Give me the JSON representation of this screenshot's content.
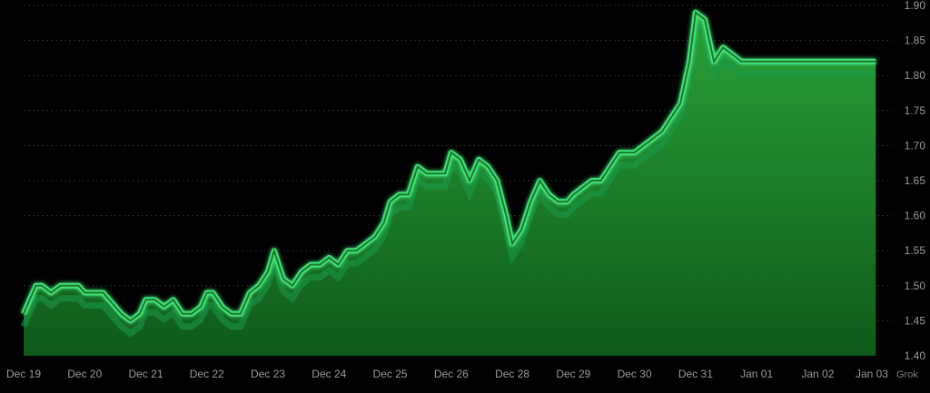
{
  "watermark": "Grok",
  "chart_data": {
    "type": "area",
    "title": "",
    "xlabel": "",
    "ylabel": "",
    "ylim": [
      1.4,
      1.9
    ],
    "yticks": [
      "1.40",
      "1.45",
      "1.50",
      "1.55",
      "1.60",
      "1.65",
      "1.70",
      "1.75",
      "1.80",
      "1.85",
      "1.90"
    ],
    "xtick_labels": [
      "Dec 19",
      "Dec 20",
      "Dec 21",
      "Dec 22",
      "Dec 23",
      "Dec 24",
      "Dec 25",
      "Dec 26",
      "Dec 28",
      "Dec 29",
      "Dec 30",
      "Dec 31",
      "Jan 01",
      "Jan 02",
      "Jan 03"
    ],
    "grid": true,
    "line_color": "#3fe07a",
    "fill_color": "#1f8a2e",
    "series": [
      {
        "x": [
          0,
          0.1,
          0.2,
          0.3,
          0.45,
          0.6,
          0.75,
          0.9,
          1.0,
          1.1,
          1.3,
          1.5,
          1.6,
          1.75,
          1.9,
          2.0,
          2.15,
          2.3,
          2.45,
          2.6,
          2.75,
          2.9,
          3.0,
          3.1,
          3.25,
          3.4,
          3.55,
          3.7,
          3.85,
          4.0,
          4.1,
          4.25,
          4.4,
          4.55,
          4.7,
          4.85,
          5.0,
          5.15,
          5.3,
          5.45,
          5.6,
          5.75,
          5.9,
          6.0,
          6.15,
          6.3,
          6.45,
          6.6,
          6.75,
          6.9,
          7.0,
          7.15,
          7.3,
          7.45,
          7.6,
          7.75,
          7.9,
          8.0,
          8.15,
          8.3,
          8.45,
          8.6,
          8.75,
          8.9,
          9.0,
          9.15,
          9.3,
          9.45,
          9.6,
          9.75,
          9.9,
          10.0,
          10.15,
          10.3,
          10.45,
          10.6,
          10.75,
          10.9,
          11.0,
          11.15,
          11.3,
          11.45,
          11.6,
          11.75,
          11.9,
          12.0,
          12.15,
          12.3,
          12.45,
          12.6,
          12.75,
          12.9,
          13.0,
          13.1,
          13.2,
          13.25,
          13.35,
          13.45,
          13.55,
          13.65,
          13.75,
          13.85,
          13.95
        ],
        "values": [
          1.46,
          1.48,
          1.5,
          1.5,
          1.49,
          1.5,
          1.5,
          1.5,
          1.49,
          1.49,
          1.49,
          1.47,
          1.46,
          1.45,
          1.46,
          1.48,
          1.48,
          1.47,
          1.48,
          1.46,
          1.46,
          1.47,
          1.49,
          1.49,
          1.47,
          1.46,
          1.46,
          1.49,
          1.5,
          1.52,
          1.55,
          1.51,
          1.5,
          1.52,
          1.53,
          1.53,
          1.54,
          1.53,
          1.55,
          1.55,
          1.56,
          1.57,
          1.59,
          1.62,
          1.63,
          1.63,
          1.67,
          1.66,
          1.66,
          1.66,
          1.69,
          1.68,
          1.65,
          1.68,
          1.67,
          1.65,
          1.6,
          1.56,
          1.58,
          1.62,
          1.65,
          1.63,
          1.62,
          1.62,
          1.63,
          1.64,
          1.65,
          1.65,
          1.67,
          1.69,
          1.69,
          1.69,
          1.7,
          1.71,
          1.72,
          1.74,
          1.76,
          1.82,
          1.89,
          1.88,
          1.82,
          1.84,
          1.83,
          1.82,
          1.82,
          1.82,
          1.82,
          1.82,
          1.82,
          1.82,
          1.82,
          1.82,
          1.82,
          1.82,
          1.82,
          1.82,
          1.82,
          1.82,
          1.82,
          1.82,
          1.82,
          1.82,
          1.82
        ]
      }
    ]
  }
}
